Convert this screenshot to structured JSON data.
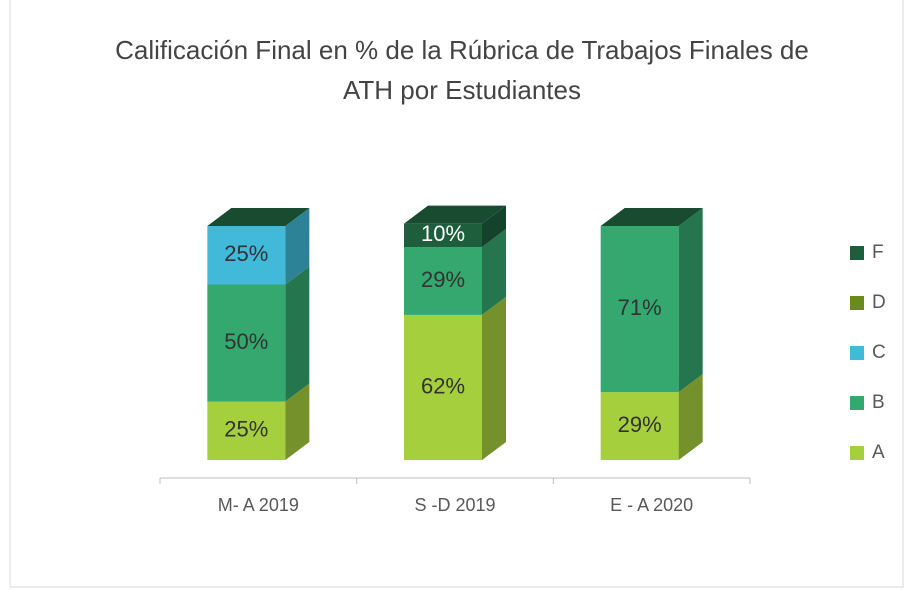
{
  "chart_data": {
    "type": "stacked-bar-3d",
    "title": "Calificación Final en % de la Rúbrica de Trabajos Finales de ATH por Estudiantes",
    "categories": [
      "M- A 2019",
      "S -D 2019",
      "E - A 2020"
    ],
    "series": [
      {
        "name": "A",
        "color": "#a6cf3e",
        "values": [
          25,
          62,
          29
        ],
        "value_labels": [
          "25%",
          "62%",
          "29%"
        ]
      },
      {
        "name": "B",
        "color": "#35a86f",
        "values": [
          50,
          29,
          71
        ],
        "value_labels": [
          "50%",
          "29%",
          "71%"
        ]
      },
      {
        "name": "C",
        "color": "#41b9d9",
        "values": [
          25,
          0,
          0
        ],
        "value_labels": [
          "25%",
          null,
          null
        ]
      },
      {
        "name": "D",
        "color": "#6a8a1e",
        "values": [
          0,
          0,
          0
        ],
        "value_labels": [
          null,
          null,
          null
        ]
      },
      {
        "name": "F",
        "color": "#1e5e3c",
        "values": [
          0,
          10,
          0
        ],
        "value_labels": [
          null,
          "10%",
          null
        ]
      }
    ],
    "ylim": [
      0,
      100
    ],
    "legend": "right"
  }
}
